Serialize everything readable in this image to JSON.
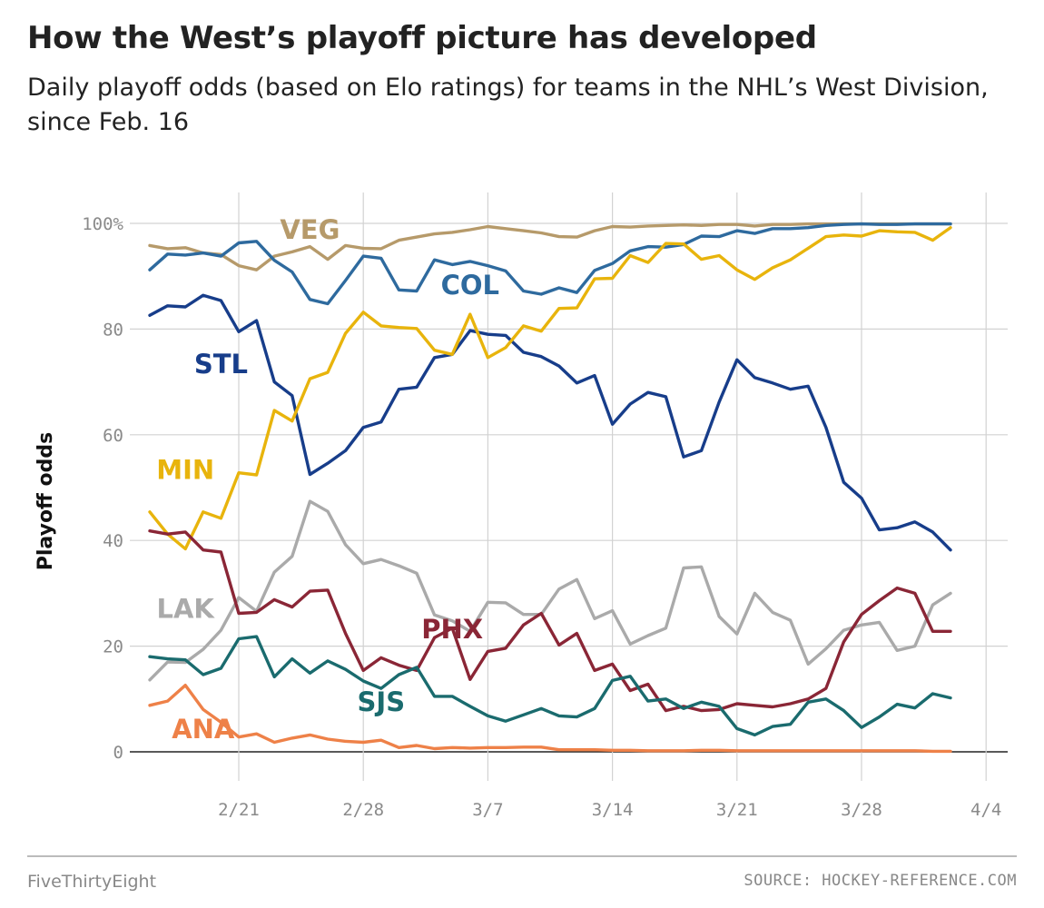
{
  "header": {
    "title": "How the West’s playoff picture has developed",
    "subtitle": "Daily playoff odds (based on Elo ratings) for teams in the NHL’s West Division, since Feb. 16"
  },
  "footer": {
    "brand": "FiveThirtyEight",
    "source": "SOURCE: HOCKEY-REFERENCE.COM"
  },
  "chart_data": {
    "type": "line",
    "ylabel": "Playoff odds",
    "xlabel": "",
    "ylim": [
      0,
      100
    ],
    "yticks": [
      {
        "value": 0,
        "label": "0"
      },
      {
        "value": 20,
        "label": "20"
      },
      {
        "value": 40,
        "label": "40"
      },
      {
        "value": 60,
        "label": "60"
      },
      {
        "value": 80,
        "label": "80"
      },
      {
        "value": 100,
        "label": "100%"
      }
    ],
    "xlim": [
      "2/15",
      "4/4"
    ],
    "xticks": [
      "2/21",
      "2/28",
      "3/7",
      "3/14",
      "3/21",
      "3/28",
      "4/4"
    ],
    "grid": true,
    "x": [
      "2/16",
      "2/17",
      "2/18",
      "2/19",
      "2/20",
      "2/21",
      "2/22",
      "2/23",
      "2/24",
      "2/25",
      "2/26",
      "2/27",
      "2/28",
      "3/1",
      "3/2",
      "3/3",
      "3/4",
      "3/5",
      "3/6",
      "3/7",
      "3/8",
      "3/9",
      "3/10",
      "3/11",
      "3/12",
      "3/13",
      "3/14",
      "3/15",
      "3/16",
      "3/17",
      "3/18",
      "3/19",
      "3/20",
      "3/21",
      "3/22",
      "3/23",
      "3/24",
      "3/25",
      "3/26",
      "3/27",
      "3/28",
      "3/29",
      "3/30",
      "3/31",
      "4/1",
      "4/2"
    ],
    "series": [
      {
        "name": "VEG",
        "color": "#b69a6a",
        "label_at": [
          "2/25",
          99
        ],
        "values": [
          95.8,
          95.2,
          95.4,
          94.4,
          94.1,
          92,
          91.2,
          93.8,
          94.6,
          95.6,
          93.2,
          95.8,
          95.3,
          95.2,
          96.8,
          97.4,
          98,
          98.3,
          98.8,
          99.4,
          99,
          98.6,
          98.2,
          97.5,
          97.4,
          98.6,
          99.4,
          99.3,
          99.5,
          99.6,
          99.7,
          99.6,
          99.8,
          99.8,
          99.5,
          99.8,
          99.8,
          99.9,
          99.9,
          99.9,
          99.9,
          99.9,
          99.9,
          99.9,
          99.9,
          99.9
        ]
      },
      {
        "name": "COL",
        "color": "#2e6a9e",
        "label_at": [
          "3/6",
          88.5
        ],
        "values": [
          91.2,
          94.2,
          94,
          94.4,
          93.8,
          96.3,
          96.6,
          93,
          90.8,
          85.6,
          84.8,
          89.2,
          93.8,
          93.4,
          87.4,
          87.2,
          93.1,
          92.2,
          92.8,
          92,
          91,
          87.2,
          86.6,
          87.8,
          86.9,
          91.1,
          92.4,
          94.8,
          95.6,
          95.5,
          96,
          97.6,
          97.5,
          98.6,
          98.1,
          99,
          99,
          99.2,
          99.6,
          99.8,
          99.9,
          99.8,
          99.8,
          99.9,
          99.9,
          99.9
        ]
      },
      {
        "name": "STL",
        "color": "#173d8a",
        "label_at": [
          "2/20",
          73.5
        ],
        "values": [
          82.6,
          84.4,
          84.2,
          86.4,
          85.4,
          79.5,
          81.6,
          70,
          67.4,
          52.5,
          54.6,
          57,
          61.4,
          62.4,
          68.6,
          69,
          74.6,
          75.2,
          79.7,
          79,
          78.8,
          75.6,
          74.8,
          73,
          69.8,
          71.2,
          62,
          65.8,
          68,
          67.2,
          55.8,
          57,
          66.2,
          74.2,
          70.8,
          69.8,
          68.6,
          69.2,
          61.4,
          51,
          48,
          42,
          42.4,
          43.5,
          41.6,
          38.2
        ]
      },
      {
        "name": "MIN",
        "color": "#e8b40c",
        "label_at": [
          "2/18",
          53.5
        ],
        "values": [
          45.4,
          41.2,
          38.4,
          45.4,
          44.2,
          52.8,
          52.4,
          64.6,
          62.6,
          70.6,
          71.8,
          79.2,
          83.2,
          80.6,
          80.3,
          80.1,
          76,
          75.2,
          82.8,
          74.6,
          76.5,
          80.6,
          79.6,
          83.9,
          84,
          89.5,
          89.6,
          93.9,
          92.6,
          96.2,
          96.1,
          93.2,
          93.9,
          91.2,
          89.4,
          91.6,
          93.1,
          95.3,
          97.5,
          97.8,
          97.6,
          98.6,
          98.4,
          98.3,
          96.8,
          99.2
        ]
      },
      {
        "name": "LAK",
        "color": "#aaaaaa",
        "label_at": [
          "2/18",
          27.2
        ],
        "values": [
          13.6,
          17,
          16.9,
          19.4,
          23,
          29.2,
          26.6,
          34,
          37,
          47.4,
          45.5,
          39.2,
          35.6,
          36.4,
          35.2,
          33.8,
          25.9,
          24.8,
          22.8,
          28.3,
          28.2,
          26,
          26,
          30.8,
          32.6,
          25.2,
          26.7,
          20.4,
          22,
          23.4,
          34.8,
          35,
          25.6,
          22.3,
          30,
          26.4,
          24.9,
          16.6,
          19.5,
          23,
          24,
          24.5,
          19.2,
          20,
          27.8,
          30
        ]
      },
      {
        "name": "PHX",
        "color": "#8a2636",
        "label_at": [
          "3/5",
          23.4
        ],
        "values": [
          41.8,
          41.2,
          41.6,
          38.2,
          37.8,
          26.2,
          26.4,
          28.8,
          27.4,
          30.4,
          30.6,
          22.4,
          15.4,
          17.8,
          16.4,
          15.4,
          21.6,
          23.4,
          13.7,
          19,
          19.6,
          24,
          26.2,
          20.2,
          22.4,
          15.4,
          16.6,
          11.6,
          12.8,
          7.8,
          8.6,
          7.8,
          8,
          9.1,
          8.8,
          8.5,
          9.1,
          10,
          12,
          20.8,
          26,
          28.6,
          31,
          30,
          22.8,
          22.8
        ]
      },
      {
        "name": "SJS",
        "color": "#1a6b6e",
        "label_at": [
          "3/1",
          9.6
        ],
        "values": [
          18,
          17.6,
          17.4,
          14.6,
          15.8,
          21.4,
          21.8,
          14.2,
          17.6,
          14.9,
          17.2,
          15.6,
          13.4,
          12,
          14.6,
          16,
          10.5,
          10.5,
          8.6,
          6.8,
          5.8,
          7,
          8.2,
          6.8,
          6.6,
          8.2,
          13.5,
          14.3,
          9.6,
          10,
          8.2,
          9.4,
          8.6,
          4.4,
          3.2,
          4.8,
          5.2,
          9.4,
          10,
          7.8,
          4.6,
          6.6,
          9,
          8.3,
          11,
          10.2
        ]
      },
      {
        "name": "ANA",
        "color": "#ee8148",
        "label_at": [
          "2/19",
          4.5
        ],
        "values": [
          8.8,
          9.6,
          12.6,
          8,
          5.6,
          2.8,
          3.4,
          1.8,
          2.6,
          3.2,
          2.4,
          2,
          1.8,
          2.2,
          0.8,
          1.2,
          0.6,
          0.8,
          0.7,
          0.8,
          0.8,
          0.9,
          0.9,
          0.4,
          0.4,
          0.4,
          0.3,
          0.3,
          0.2,
          0.2,
          0.2,
          0.3,
          0.3,
          0.2,
          0.2,
          0.2,
          0.2,
          0.2,
          0.2,
          0.2,
          0.2,
          0.2,
          0.2,
          0.2,
          0.1,
          0.1
        ]
      }
    ]
  }
}
